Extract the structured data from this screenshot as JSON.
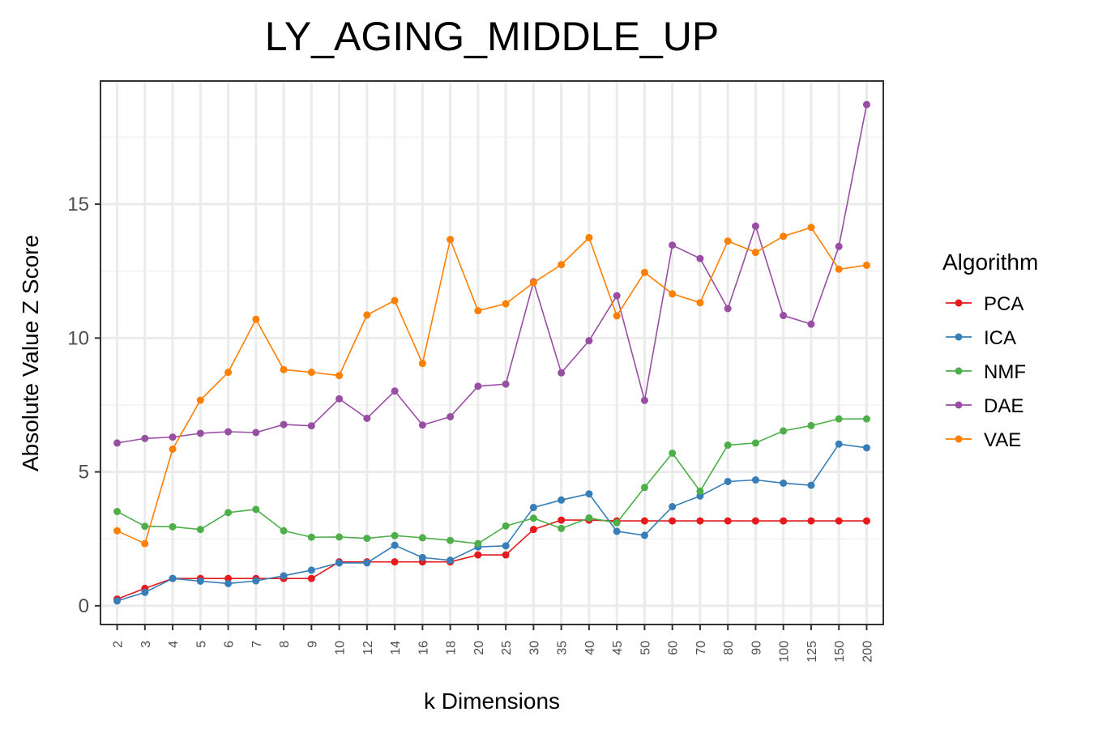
{
  "chart_data": {
    "type": "line",
    "title": "LY_AGING_MIDDLE_UP",
    "xlabel": "k Dimensions",
    "ylabel": "Absolute Value Z Score",
    "categories": [
      "2",
      "3",
      "4",
      "5",
      "6",
      "7",
      "8",
      "9",
      "10",
      "12",
      "14",
      "16",
      "18",
      "20",
      "25",
      "30",
      "35",
      "40",
      "45",
      "50",
      "60",
      "70",
      "80",
      "90",
      "100",
      "125",
      "150",
      "200"
    ],
    "ylim": [
      -0.7,
      19.6
    ],
    "yticks": [
      0,
      5,
      10,
      15
    ],
    "ytick_labels": [
      "0",
      "5",
      "10",
      "15"
    ],
    "grid": true,
    "legend": {
      "title": "Algorithm",
      "placement": "right"
    },
    "series": [
      {
        "name": "PCA",
        "color": "#e41a1c",
        "values": [
          0.25,
          0.65,
          1.02,
          1.02,
          1.02,
          1.02,
          1.02,
          1.02,
          1.64,
          1.64,
          1.64,
          1.64,
          1.64,
          1.9,
          1.9,
          2.85,
          3.2,
          3.2,
          3.17,
          3.17,
          3.17,
          3.17,
          3.17,
          3.17,
          3.17,
          3.17,
          3.17,
          3.17
        ]
      },
      {
        "name": "ICA",
        "color": "#377eb8",
        "values": [
          0.18,
          0.5,
          1.02,
          0.92,
          0.83,
          0.93,
          1.12,
          1.33,
          1.6,
          1.6,
          2.26,
          1.8,
          1.7,
          2.2,
          2.24,
          3.67,
          3.95,
          4.18,
          2.78,
          2.63,
          3.7,
          4.1,
          4.64,
          4.7,
          4.58,
          4.5,
          6.04,
          5.9
        ]
      },
      {
        "name": "NMF",
        "color": "#4daf4a",
        "values": [
          3.52,
          2.97,
          2.95,
          2.85,
          3.48,
          3.6,
          2.8,
          2.56,
          2.57,
          2.52,
          2.62,
          2.54,
          2.44,
          2.32,
          2.98,
          3.27,
          2.89,
          3.28,
          3.1,
          4.42,
          5.7,
          4.28,
          6.0,
          6.08,
          6.53,
          6.73,
          6.98,
          6.98
        ]
      },
      {
        "name": "DAE",
        "color": "#984ea3",
        "values": [
          6.08,
          6.25,
          6.3,
          6.44,
          6.5,
          6.47,
          6.77,
          6.72,
          7.73,
          7.0,
          8.02,
          6.75,
          7.06,
          8.2,
          8.28,
          12.1,
          8.7,
          9.9,
          11.58,
          7.67,
          13.47,
          12.97,
          11.1,
          14.18,
          10.84,
          10.52,
          13.42,
          18.72
        ]
      },
      {
        "name": "VAE",
        "color": "#ff7f00",
        "values": [
          2.8,
          2.32,
          5.85,
          7.68,
          8.72,
          10.7,
          8.82,
          8.72,
          8.6,
          10.86,
          11.4,
          9.05,
          13.68,
          11.02,
          11.28,
          12.07,
          12.74,
          13.75,
          10.83,
          12.45,
          11.65,
          11.32,
          13.62,
          13.2,
          13.8,
          14.13,
          12.57,
          12.72
        ]
      }
    ]
  }
}
